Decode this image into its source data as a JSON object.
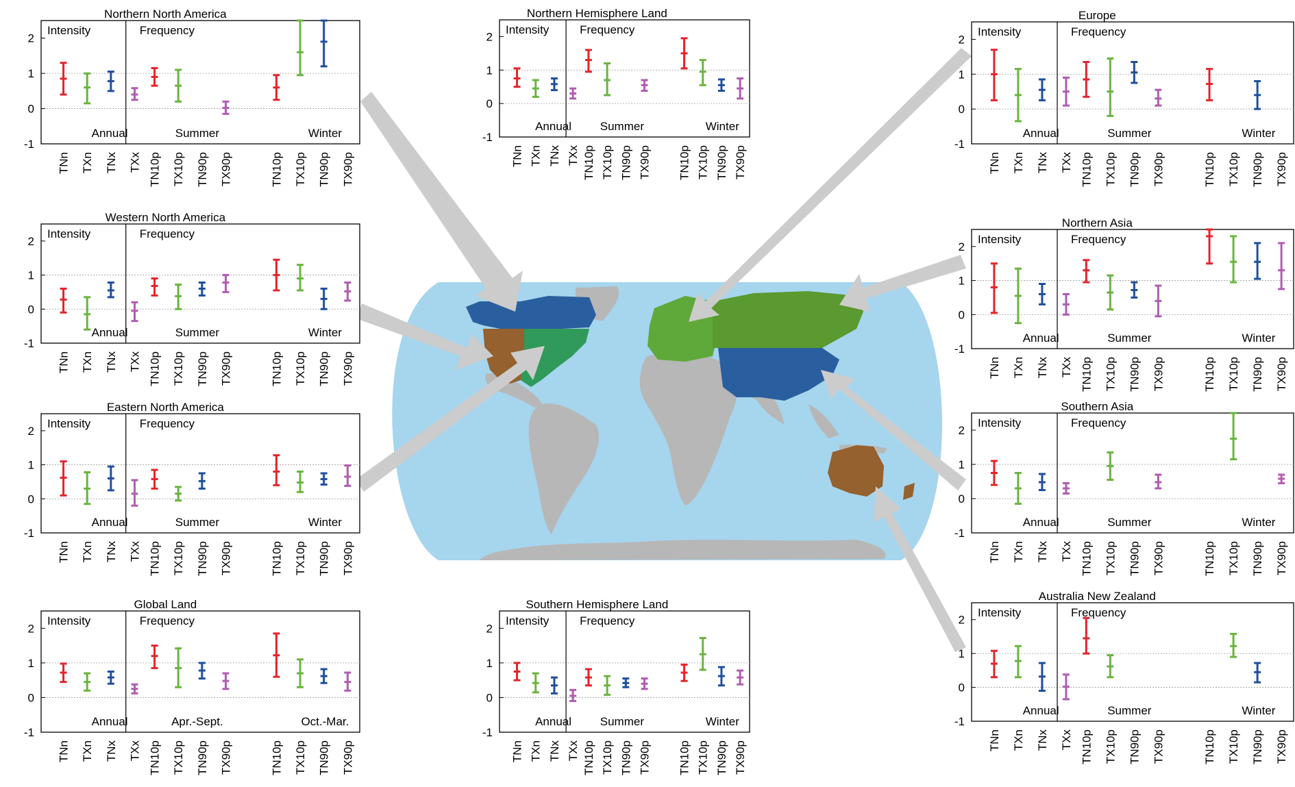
{
  "colors": {
    "red": "#e3242b",
    "green": "#6ab43e",
    "blue": "#1f4e9e",
    "purple": "#b05cb0",
    "ocean": "#a6d5ee",
    "land": "#b7b7b7",
    "arrow": "#cccccc",
    "map_blue": "#2a5f9f",
    "map_brown": "#94612f",
    "map_green": "#2f9a5a",
    "map_lightgreen": "#5fa83a"
  },
  "labels": {
    "intensity": "Intensity",
    "frequency": "Frequency",
    "annual": "Annual",
    "summer": "Summer",
    "winter": "Winter",
    "apr_sept": "Apr.-Sept.",
    "oct_mar": "Oct.-Mar.",
    "yticks": [
      "-1",
      "0",
      "1",
      "2"
    ],
    "ann_ticks": [
      "TNn",
      "TXn",
      "TNx",
      "TXx"
    ],
    "freq_ticks": [
      "TN10p",
      "TX10p",
      "TN90p",
      "TX90p"
    ]
  },
  "chart_data": [
    {
      "type": "errorbar",
      "title": "Northern North America",
      "ylim": [
        -1,
        2.5
      ],
      "annual": [
        [
          0.85,
          0.4,
          1.3
        ],
        [
          0.6,
          0.15,
          1.0
        ],
        [
          0.78,
          0.5,
          1.05
        ],
        [
          0.4,
          0.25,
          0.58
        ]
      ],
      "summer": [
        [
          0.9,
          0.65,
          1.15
        ],
        [
          0.65,
          0.2,
          1.1
        ],
        null,
        [
          0.02,
          -0.15,
          0.2
        ]
      ],
      "winter": [
        [
          0.6,
          0.25,
          0.95
        ],
        [
          1.6,
          0.95,
          2.5
        ],
        [
          1.9,
          1.2,
          2.5
        ],
        null
      ],
      "season_labels": [
        "Annual",
        "Summer",
        "Winter"
      ]
    },
    {
      "type": "errorbar",
      "title": "Northern Hemisphere Land",
      "ylim": [
        -1,
        2.5
      ],
      "annual": [
        [
          0.75,
          0.5,
          1.05
        ],
        [
          0.45,
          0.2,
          0.7
        ],
        [
          0.58,
          0.4,
          0.75
        ],
        [
          0.3,
          0.15,
          0.45
        ]
      ],
      "summer": [
        [
          1.3,
          0.95,
          1.6
        ],
        [
          0.7,
          0.25,
          1.2
        ],
        null,
        [
          0.55,
          0.38,
          0.7
        ]
      ],
      "winter": [
        [
          1.5,
          1.05,
          1.95
        ],
        [
          0.95,
          0.55,
          1.3
        ],
        [
          0.55,
          0.38,
          0.72
        ],
        [
          0.45,
          0.15,
          0.75
        ]
      ],
      "season_labels": [
        "Annual",
        "Summer",
        "Winter"
      ]
    },
    {
      "type": "errorbar",
      "title": "Europe",
      "ylim": [
        -1,
        2.5
      ],
      "annual": [
        [
          1.0,
          0.25,
          1.7
        ],
        [
          0.4,
          -0.35,
          1.15
        ],
        [
          0.55,
          0.25,
          0.85
        ],
        [
          0.5,
          0.1,
          0.9
        ]
      ],
      "summer": [
        [
          0.85,
          0.35,
          1.35
        ],
        [
          0.5,
          -0.2,
          1.45
        ],
        [
          1.05,
          0.75,
          1.35
        ],
        [
          0.3,
          0.1,
          0.55
        ]
      ],
      "winter": [
        [
          0.72,
          0.25,
          1.15
        ],
        null,
        [
          0.4,
          0.0,
          0.8
        ],
        null
      ],
      "season_labels": [
        "Annual",
        "Summer",
        "Winter"
      ]
    },
    {
      "type": "errorbar",
      "title": "Western North America",
      "ylim": [
        -1,
        2.5
      ],
      "annual": [
        [
          0.28,
          -0.1,
          0.6
        ],
        [
          -0.15,
          -0.6,
          0.35
        ],
        [
          0.55,
          0.35,
          0.78
        ],
        [
          -0.05,
          -0.35,
          0.2
        ]
      ],
      "summer": [
        [
          0.68,
          0.4,
          0.9
        ],
        [
          0.38,
          0.0,
          0.72
        ],
        [
          0.6,
          0.4,
          0.78
        ],
        [
          0.78,
          0.5,
          1.0
        ]
      ],
      "winter": [
        [
          1.0,
          0.55,
          1.45
        ],
        [
          0.9,
          0.55,
          1.3
        ],
        [
          0.3,
          0.0,
          0.6
        ],
        [
          0.52,
          0.25,
          0.78
        ]
      ],
      "season_labels": [
        "Annual",
        "Summer",
        "Winter"
      ]
    },
    {
      "type": "errorbar",
      "title": "Northern Asia",
      "ylim": [
        -1,
        2.5
      ],
      "annual": [
        [
          0.8,
          0.05,
          1.5
        ],
        [
          0.55,
          -0.25,
          1.35
        ],
        [
          0.6,
          0.3,
          0.9
        ],
        [
          0.3,
          0.0,
          0.6
        ]
      ],
      "summer": [
        [
          1.3,
          0.95,
          1.6
        ],
        [
          0.65,
          0.15,
          1.15
        ],
        [
          0.72,
          0.5,
          0.95
        ],
        [
          0.4,
          -0.05,
          0.85
        ]
      ],
      "winter": [
        [
          2.3,
          1.5,
          2.5
        ],
        [
          1.55,
          0.95,
          2.3
        ],
        [
          1.55,
          1.05,
          2.1
        ],
        [
          1.3,
          0.75,
          2.1
        ]
      ],
      "season_labels": [
        "Annual",
        "Summer",
        "Winter"
      ]
    },
    {
      "type": "errorbar",
      "title": "Eastern North America",
      "ylim": [
        -1,
        2.5
      ],
      "annual": [
        [
          0.62,
          0.1,
          1.1
        ],
        [
          0.3,
          -0.15,
          0.78
        ],
        [
          0.6,
          0.25,
          0.95
        ],
        [
          0.15,
          -0.2,
          0.55
        ]
      ],
      "summer": [
        [
          0.58,
          0.3,
          0.85
        ],
        [
          0.15,
          -0.05,
          0.35
        ],
        [
          0.52,
          0.3,
          0.75
        ],
        null
      ],
      "winter": [
        [
          0.8,
          0.4,
          1.28
        ],
        [
          0.48,
          0.2,
          0.8
        ],
        [
          0.58,
          0.42,
          0.75
        ],
        [
          0.65,
          0.38,
          0.98
        ]
      ],
      "season_labels": [
        "Annual",
        "Summer",
        "Winter"
      ]
    },
    {
      "type": "errorbar",
      "title": "Southern Asia",
      "ylim": [
        -1,
        2.5
      ],
      "annual": [
        [
          0.75,
          0.4,
          1.1
        ],
        [
          0.3,
          -0.15,
          0.75
        ],
        [
          0.48,
          0.25,
          0.72
        ],
        [
          0.3,
          0.15,
          0.45
        ]
      ],
      "summer": [
        null,
        [
          0.95,
          0.55,
          1.35
        ],
        null,
        [
          0.48,
          0.3,
          0.7
        ]
      ],
      "winter": [
        null,
        [
          1.75,
          1.15,
          2.5
        ],
        null,
        [
          0.58,
          0.45,
          0.7
        ]
      ],
      "season_labels": [
        "Annual",
        "Summer",
        "Winter"
      ]
    },
    {
      "type": "errorbar",
      "title": "Global Land",
      "ylim": [
        -1,
        2.5
      ],
      "annual": [
        [
          0.72,
          0.45,
          0.98
        ],
        [
          0.45,
          0.2,
          0.7
        ],
        [
          0.58,
          0.4,
          0.75
        ],
        [
          0.25,
          0.12,
          0.38
        ]
      ],
      "summer": [
        [
          1.2,
          0.85,
          1.5
        ],
        [
          0.85,
          0.3,
          1.42
        ],
        [
          0.78,
          0.55,
          1.0
        ],
        [
          0.48,
          0.25,
          0.7
        ]
      ],
      "winter": [
        [
          1.22,
          0.6,
          1.85
        ],
        [
          0.7,
          0.3,
          1.1
        ],
        [
          0.62,
          0.42,
          0.82
        ],
        [
          0.45,
          0.2,
          0.72
        ]
      ],
      "season_labels": [
        "Annual",
        "Apr.-Sept.",
        "Oct.-Mar."
      ]
    },
    {
      "type": "errorbar",
      "title": "Southern Hemisphere Land",
      "ylim": [
        -1,
        2.5
      ],
      "annual": [
        [
          0.75,
          0.5,
          1.0
        ],
        [
          0.42,
          0.15,
          0.7
        ],
        [
          0.35,
          0.12,
          0.58
        ],
        [
          0.05,
          -0.1,
          0.22
        ]
      ],
      "summer": [
        [
          0.58,
          0.35,
          0.82
        ],
        [
          0.35,
          0.08,
          0.62
        ],
        [
          0.42,
          0.3,
          0.55
        ],
        [
          0.4,
          0.25,
          0.55
        ]
      ],
      "winter": [
        [
          0.72,
          0.48,
          0.95
        ],
        [
          1.25,
          0.8,
          1.72
        ],
        [
          0.62,
          0.35,
          0.88
        ],
        [
          0.58,
          0.38,
          0.78
        ]
      ],
      "season_labels": [
        "Annual",
        "Summer",
        "Winter"
      ]
    },
    {
      "type": "errorbar",
      "title": "Australia  New Zealand",
      "ylim": [
        -1,
        2.5
      ],
      "annual": [
        [
          0.7,
          0.3,
          1.08
        ],
        [
          0.78,
          0.3,
          1.22
        ],
        [
          0.32,
          -0.1,
          0.72
        ],
        [
          0.02,
          -0.35,
          0.38
        ]
      ],
      "summer": [
        [
          1.45,
          1.0,
          2.05
        ],
        [
          0.62,
          0.3,
          0.95
        ],
        null,
        null
      ],
      "winter": [
        null,
        [
          1.22,
          0.9,
          1.58
        ],
        [
          0.45,
          0.15,
          0.72
        ],
        null
      ],
      "season_labels": [
        "Annual",
        "Summer",
        "Winter"
      ]
    }
  ]
}
